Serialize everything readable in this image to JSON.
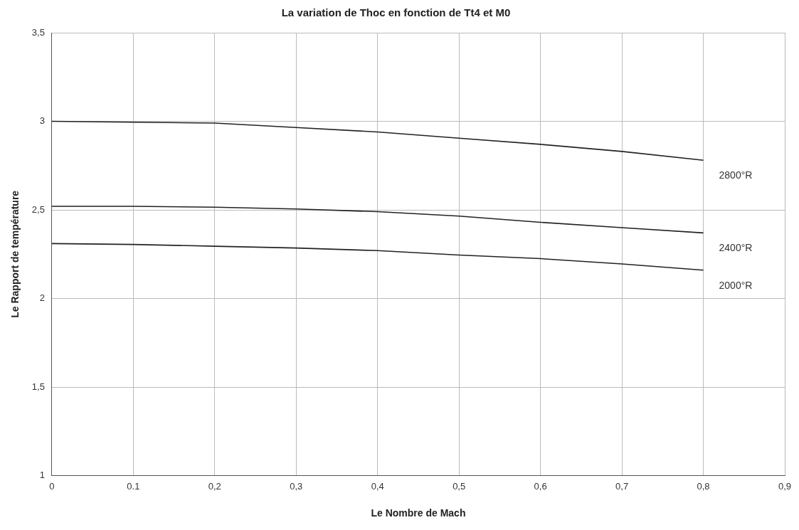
{
  "chart_data": {
    "type": "line",
    "title": "La variation de Thoc en fonction de Tt4 et M0",
    "xlabel": "Le Nombre de Mach",
    "ylabel": "Le Rapport de température",
    "x": [
      0,
      0.1,
      0.2,
      0.3,
      0.4,
      0.5,
      0.6,
      0.7,
      0.8
    ],
    "series": [
      {
        "name": "2800°R",
        "color": "#222222",
        "values": [
          3.0,
          2.995,
          2.99,
          2.965,
          2.94,
          2.905,
          2.87,
          2.83,
          2.78
        ]
      },
      {
        "name": "2400°R",
        "color": "#222222",
        "values": [
          2.52,
          2.52,
          2.515,
          2.505,
          2.49,
          2.465,
          2.43,
          2.4,
          2.37
        ]
      },
      {
        "name": "2000°R",
        "color": "#222222",
        "values": [
          2.31,
          2.305,
          2.295,
          2.285,
          2.27,
          2.245,
          2.225,
          2.195,
          2.16
        ]
      }
    ],
    "xlim": [
      0,
      0.9
    ],
    "xticks": [
      0,
      {
        "value": 0.1,
        "label": "0.1"
      },
      {
        "value": 0.2,
        "label": "0,2"
      },
      {
        "value": 0.3,
        "label": "0,3"
      },
      {
        "value": 0.4,
        "label": "0,4"
      },
      {
        "value": 0.5,
        "label": "0,5"
      },
      {
        "value": 0.6,
        "label": "0,6"
      },
      {
        "value": 0.7,
        "label": "0,7"
      },
      {
        "value": 0.8,
        "label": "0,8"
      },
      {
        "value": 0.9,
        "label": "0,9"
      }
    ],
    "ylim": [
      1,
      3.5
    ],
    "yticks": [
      1,
      {
        "value": 1.5,
        "label": "1,5"
      },
      2,
      {
        "value": 2.5,
        "label": "2,5"
      },
      3,
      {
        "value": 3.5,
        "label": "3,5"
      }
    ],
    "grid": true,
    "legend": false,
    "marker": "none",
    "line_style": "solid"
  }
}
